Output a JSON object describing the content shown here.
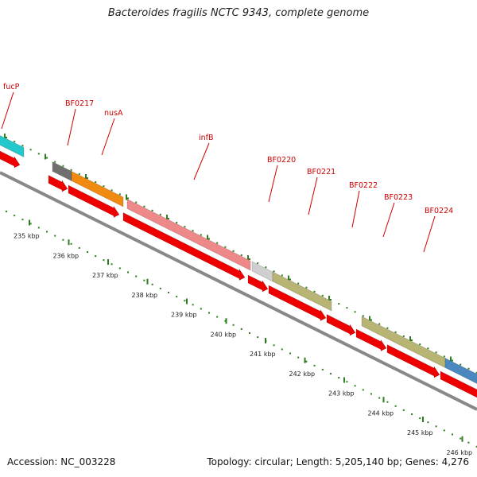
{
  "title": "Bacteroides fragilis NCTC 9343, complete genome",
  "footer": {
    "accession": "Accession: NC_003228",
    "summary": "Topology: circular; Length: 5,205,140 bp; Genes: 4,276"
  },
  "colors": {
    "cds": "#ee0000",
    "backbone": "#888888",
    "tick": "#2e7d1e",
    "label": "#cc0000"
  },
  "features": [
    {
      "name": "fucP",
      "color": "#22c8cc"
    },
    {
      "name": "BF0217",
      "color": "#707070"
    },
    {
      "name": "nusA",
      "color": "#f08a10"
    },
    {
      "name": "infB",
      "color": "#ef8888"
    },
    {
      "name": "BF0220",
      "color": "#cfcfcf"
    },
    {
      "name": "BF0221",
      "color": "#b8b474"
    },
    {
      "name": "BF0222",
      "color": "#b8b474"
    },
    {
      "name": "BF0223",
      "color": "#b8b474"
    },
    {
      "name": "BF0224",
      "color": "#4a88c0"
    }
  ],
  "scale": {
    "unit": "kbp",
    "labels": [
      "235 kbp",
      "236 kbp",
      "237 kbp",
      "238 kbp",
      "239 kbp",
      "240 kbp",
      "241 kbp",
      "242 kbp",
      "243 kbp",
      "244 kbp",
      "245 kbp",
      "246 kbp"
    ]
  }
}
